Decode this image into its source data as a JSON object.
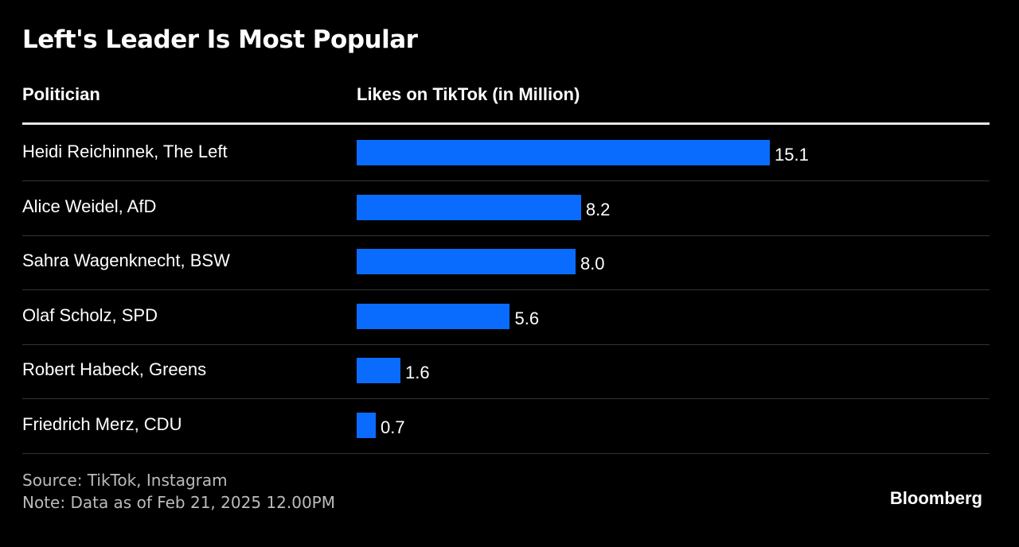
{
  "chart_data": {
    "type": "bar",
    "orientation": "horizontal",
    "title": "Left's Leader Is Most Popular",
    "columns": [
      "Politician",
      "Likes on TikTok (in Million)"
    ],
    "categories": [
      "Heidi Reichinnek, The Left",
      "Alice Weidel, AfD",
      "Sahra Wagenknecht, BSW",
      "Olaf Scholz, SPD",
      "Robert Habeck, Greens",
      "Friedrich Merz, CDU"
    ],
    "values": [
      15.1,
      8.2,
      8.0,
      5.6,
      1.6,
      0.7
    ],
    "value_labels": [
      "15.1",
      "8.2",
      "8.0",
      "5.6",
      "1.6",
      "0.7"
    ],
    "bar_color": "#0a6cff",
    "xlim": [
      0,
      15.1
    ]
  },
  "footer": {
    "source": "Source: TikTok, Instagram",
    "note": "Note: Data as of Feb 21, 2025 12.00PM",
    "brand": "Bloomberg"
  }
}
